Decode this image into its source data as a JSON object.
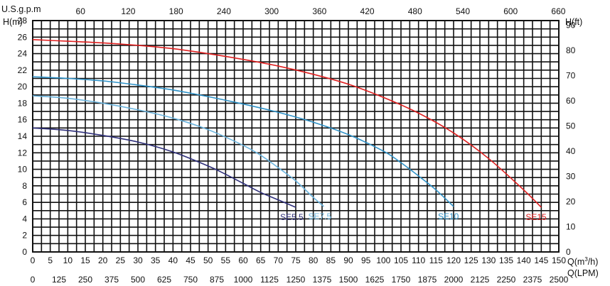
{
  "chart_data": {
    "type": "line",
    "x_axis_bottom": {
      "label": "Q(m³/h)",
      "range": [
        0,
        150
      ],
      "ticks": [
        0,
        5,
        10,
        15,
        20,
        25,
        30,
        35,
        40,
        45,
        50,
        55,
        60,
        65,
        70,
        75,
        80,
        85,
        90,
        95,
        100,
        105,
        110,
        115,
        120,
        125,
        130,
        135,
        140,
        145,
        150
      ]
    },
    "x_axis_bottom2": {
      "label": "Q(LPM)",
      "ticks": [
        "0",
        "125",
        "250",
        "375",
        "500",
        "625",
        "750",
        "875",
        "1000",
        "1125",
        "1250",
        "1375",
        "1500",
        "1625",
        "1750",
        "1875",
        "2000",
        "2125",
        "2250",
        "2375",
        "2500"
      ]
    },
    "x_axis_top": {
      "label": "U.S.g.p.m",
      "ticks": [
        60,
        120,
        180,
        240,
        300,
        360,
        420,
        480,
        540,
        600,
        660
      ]
    },
    "y_axis_left": {
      "label": "H(m)",
      "range": [
        0,
        28
      ],
      "ticks": [
        0,
        2,
        4,
        6,
        8,
        10,
        12,
        14,
        16,
        18,
        20,
        22,
        24,
        26,
        28
      ]
    },
    "y_axis_right": {
      "label": "H(ft)",
      "ticks": [
        0,
        10,
        20,
        30,
        40,
        50,
        60,
        70,
        80,
        90
      ]
    },
    "grid": true,
    "series": [
      {
        "name": "SE15",
        "color": "#e02020",
        "x": [
          0,
          10,
          20,
          30,
          40,
          50,
          60,
          70,
          80,
          90,
          100,
          110,
          120,
          130,
          140,
          145
        ],
        "y": [
          25.7,
          25.5,
          25.3,
          25.0,
          24.6,
          24.0,
          23.3,
          22.5,
          21.5,
          20.3,
          18.7,
          16.8,
          14.4,
          11.3,
          7.5,
          5.4
        ]
      },
      {
        "name": "SE10",
        "color": "#2e92c8",
        "x": [
          0,
          10,
          20,
          30,
          40,
          50,
          60,
          70,
          80,
          90,
          100,
          105,
          110,
          115,
          120
        ],
        "y": [
          21.2,
          21.0,
          20.7,
          20.2,
          19.6,
          18.8,
          17.9,
          16.9,
          15.7,
          14.2,
          12.2,
          10.8,
          9.2,
          7.5,
          5.5
        ]
      },
      {
        "name": "SE7.5",
        "color": "#6ab4de",
        "x": [
          0,
          10,
          20,
          30,
          40,
          50,
          60,
          65,
          70,
          75,
          80,
          83
        ],
        "y": [
          18.9,
          18.6,
          18.0,
          17.2,
          16.2,
          14.8,
          12.9,
          11.7,
          10.2,
          8.6,
          6.6,
          5.5
        ]
      },
      {
        "name": "SE5.5",
        "color": "#2e2f7a",
        "x": [
          0,
          10,
          20,
          30,
          40,
          50,
          55,
          60,
          65,
          70,
          75
        ],
        "y": [
          15.0,
          14.7,
          14.1,
          13.3,
          12.1,
          10.4,
          9.4,
          8.3,
          7.2,
          6.3,
          5.4
        ]
      }
    ]
  }
}
